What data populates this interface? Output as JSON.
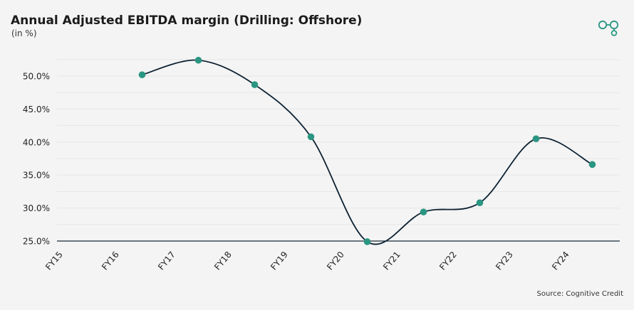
{
  "header": {
    "title": "Annual Adjusted EBITDA margin (Drilling: Offshore)",
    "subtitle": "(in %)",
    "logo_icon": "brand-logo-icon"
  },
  "footer": {
    "source": "Source: Cognitive Credit"
  },
  "colors": {
    "line": "#0d2233",
    "marker": "#2a9682",
    "logo": "#2a9682",
    "grid": "#e6e6e6",
    "axis": "#1b2a38"
  },
  "chart_data": {
    "type": "line",
    "title": "Annual Adjusted EBITDA margin (Drilling: Offshore)",
    "subtitle": "(in %)",
    "xlabel": "",
    "ylabel": "",
    "categories": [
      "FY15",
      "FY16",
      "FY17",
      "FY18",
      "FY19",
      "FY20",
      "FY21",
      "FY22",
      "FY23",
      "FY24"
    ],
    "y_ticks": [
      "25.0%",
      "30.0%",
      "35.0%",
      "40.0%",
      "45.0%",
      "50.0%"
    ],
    "ylim": [
      25,
      52.5
    ],
    "grid": true,
    "legend": "none",
    "series": [
      {
        "values": [
          null,
          50.2,
          52.4,
          48.7,
          40.8,
          24.9,
          29.4,
          30.8,
          40.5,
          36.6
        ]
      }
    ]
  }
}
